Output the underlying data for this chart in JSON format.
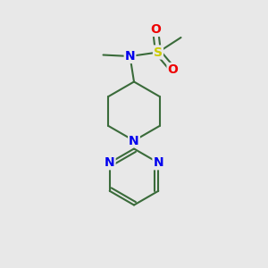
{
  "bg_color": "#e8e8e8",
  "bond_color": "#3a6b3a",
  "bond_width": 1.5,
  "atom_colors": {
    "N": "#0000ee",
    "O": "#ee0000",
    "S": "#cccc00",
    "C": "#000000"
  },
  "figsize": [
    3.0,
    3.0
  ],
  "dpi": 100,
  "xlim": [
    0,
    10
  ],
  "ylim": [
    0,
    10
  ]
}
